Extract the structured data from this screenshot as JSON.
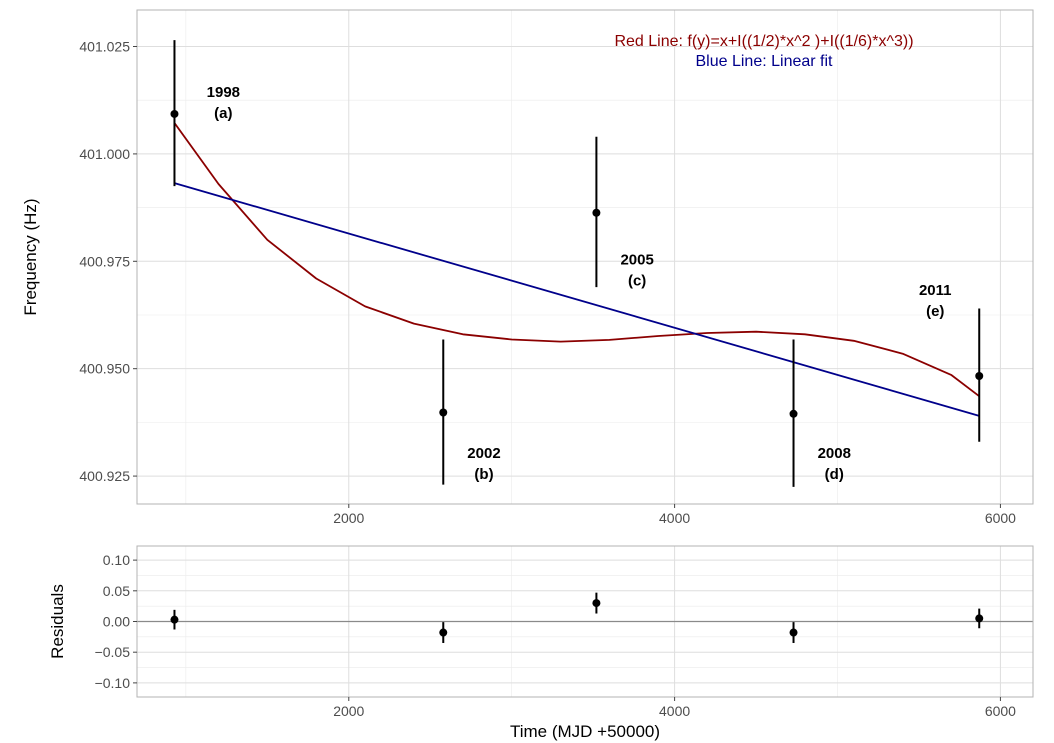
{
  "chart_data": [
    {
      "type": "scatter",
      "panel": "main",
      "ylabel": "Frequency (Hz)",
      "xlim": [
        700,
        6200
      ],
      "ylim": [
        400.9185,
        401.0335
      ],
      "x_ticks": [
        {
          "value": 2000,
          "label": "2000"
        },
        {
          "value": 4000,
          "label": "4000"
        },
        {
          "value": 6000,
          "label": "6000"
        }
      ],
      "x_minor_ticks": [
        1000,
        3000,
        5000
      ],
      "y_ticks": [
        {
          "value": 400.925,
          "label": "400.925"
        },
        {
          "value": 400.95,
          "label": "400.950"
        },
        {
          "value": 400.975,
          "label": "400.975"
        },
        {
          "value": 401.0,
          "label": "401.000"
        },
        {
          "value": 401.025,
          "label": "401.025"
        }
      ],
      "y_minor_ticks": [
        400.9375,
        400.9625,
        400.9875,
        401.0125
      ],
      "grid": true,
      "points": [
        {
          "x": 930,
          "y": 401.0093,
          "ymin": 400.9925,
          "ymax": 401.0265,
          "year": "1998",
          "tag": "(a)",
          "lx": 1230,
          "ly": 401.0125
        },
        {
          "x": 2580,
          "y": 400.9398,
          "ymin": 400.923,
          "ymax": 400.9568,
          "year": "2002",
          "tag": "(b)",
          "lx": 2830,
          "ly": 400.9285
        },
        {
          "x": 3520,
          "y": 400.9863,
          "ymin": 400.969,
          "ymax": 401.004,
          "year": "2005",
          "tag": "(c)",
          "lx": 3770,
          "ly": 400.9735
        },
        {
          "x": 4730,
          "y": 400.9395,
          "ymin": 400.9225,
          "ymax": 400.9568,
          "year": "2008",
          "tag": "(d)",
          "lx": 4980,
          "ly": 400.9285
        },
        {
          "x": 5870,
          "y": 400.9483,
          "ymin": 400.933,
          "ymax": 400.964,
          "year": "2011",
          "tag": "(e)",
          "lx": 5600,
          "ly": 400.9665
        }
      ],
      "series": [
        {
          "name": "Red Line: f(y)=x+I((1/2)*x^2 )+I((1/6)*x^3))",
          "color": "#8b0000",
          "x": [
            930,
            1200,
            1500,
            1800,
            2100,
            2400,
            2700,
            3000,
            3300,
            3600,
            3900,
            4200,
            4500,
            4800,
            5100,
            5400,
            5700,
            5870
          ],
          "y": [
            401.0072,
            400.993,
            400.98,
            400.971,
            400.9645,
            400.9605,
            400.958,
            400.9568,
            400.9563,
            400.9567,
            400.9576,
            400.9583,
            400.9586,
            400.958,
            400.9565,
            400.9535,
            400.9485,
            400.9436
          ]
        },
        {
          "name": "Blue Line: Linear fit",
          "color": "#00008b",
          "x": [
            930,
            5870
          ],
          "y": [
            400.9932,
            400.939
          ]
        }
      ]
    },
    {
      "type": "scatter",
      "panel": "residuals",
      "xlabel": "Time (MJD +50000)",
      "ylabel": "Residuals",
      "xlim": [
        700,
        6200
      ],
      "ylim": [
        -0.123,
        0.123
      ],
      "x_ticks": [
        {
          "value": 2000,
          "label": "2000"
        },
        {
          "value": 4000,
          "label": "4000"
        },
        {
          "value": 6000,
          "label": "6000"
        }
      ],
      "x_minor_ticks": [
        1000,
        3000,
        5000
      ],
      "y_ticks": [
        {
          "value": -0.1,
          "label": "−0.10"
        },
        {
          "value": -0.05,
          "label": "−0.05"
        },
        {
          "value": 0.0,
          "label": "0.00"
        },
        {
          "value": 0.05,
          "label": "0.05"
        },
        {
          "value": 0.1,
          "label": "0.10"
        }
      ],
      "y_minor_ticks": [
        -0.075,
        -0.025,
        0.025,
        0.075
      ],
      "zero_line": true,
      "grid": true,
      "points": [
        {
          "x": 930,
          "y": 0.003,
          "ymin": -0.013,
          "ymax": 0.019
        },
        {
          "x": 2580,
          "y": -0.018,
          "ymin": -0.035,
          "ymax": -0.001
        },
        {
          "x": 3520,
          "y": 0.03,
          "ymin": 0.013,
          "ymax": 0.047
        },
        {
          "x": 4730,
          "y": -0.018,
          "ymin": -0.035,
          "ymax": -0.001
        },
        {
          "x": 5870,
          "y": 0.005,
          "ymin": -0.011,
          "ymax": 0.021
        }
      ]
    }
  ]
}
